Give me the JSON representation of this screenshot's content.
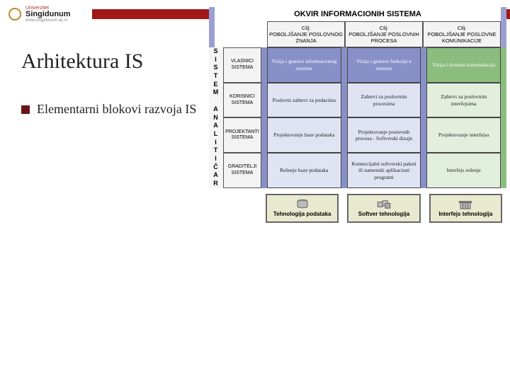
{
  "header": {
    "logo_name": "Singidunum",
    "logo_super": "Univerzitet",
    "logo_sub": "www.singidunum.ac.rs",
    "accent_color": "#a01818"
  },
  "slide": {
    "title": "Arhitektura IS",
    "bullet": "Elementarni blokovi razvoja IS"
  },
  "diagram": {
    "framework_title": "OKVIR INFORMACIONIH SISTEMA",
    "goals": [
      "Cilj:\nPOBOLJŠANJE POSLOVNOG ZNANJA",
      "Cilj:\nPOBOLJŠANJE POSLOVNIH PROCESA",
      "Cilj:\nPOBOLJŠANJE POSLOVNE KOMUNIKACIJE"
    ],
    "roles": [
      "S I S T E M",
      "A N A L I T I Č A R"
    ],
    "stakeholders": [
      "VLASNICI SISTEMA",
      "KORISNICI SISTEMA",
      "PROJEKTANTI SISTEMA",
      "GRADITELJI SISTEMA"
    ],
    "matrix": [
      [
        "Vizija i granice informacionog sistema",
        "Vizija i granice funkcija u sistemu",
        "Vizija i domeni komunikacija"
      ],
      [
        "Poslovni zahtevi za podacima",
        "Zahtevi za poslovnim procesima",
        "Zahtevi za poslovnim interfejsima"
      ],
      [
        "Projektovanje baze podataka",
        "Projektovanje poslovnih procesa - Softverski dizajn",
        "Projektovanje interfejsa"
      ],
      [
        "Rešenje baze podataka",
        "Komercijalni softverski paketi ili namenski aplikacioni programi",
        "Interfejs rešenje"
      ]
    ],
    "columns_style": [
      {
        "bg": "#e0e3f2",
        "top_bg": "#8890c8",
        "edge": "#8890c8"
      },
      {
        "bg": "#e0e3f2",
        "top_bg": "#8890c8",
        "edge": "#8890c8"
      },
      {
        "bg": "#e3efdd",
        "top_bg": "#8bbd7e",
        "edge": "#8bbd7e"
      }
    ],
    "tech": [
      {
        "label": "Tehnologija podataka",
        "icon": "cylinder"
      },
      {
        "label": "Softver tehnologija",
        "icon": "boxes"
      },
      {
        "label": "Interfejs tehnologija",
        "icon": "building"
      }
    ]
  }
}
